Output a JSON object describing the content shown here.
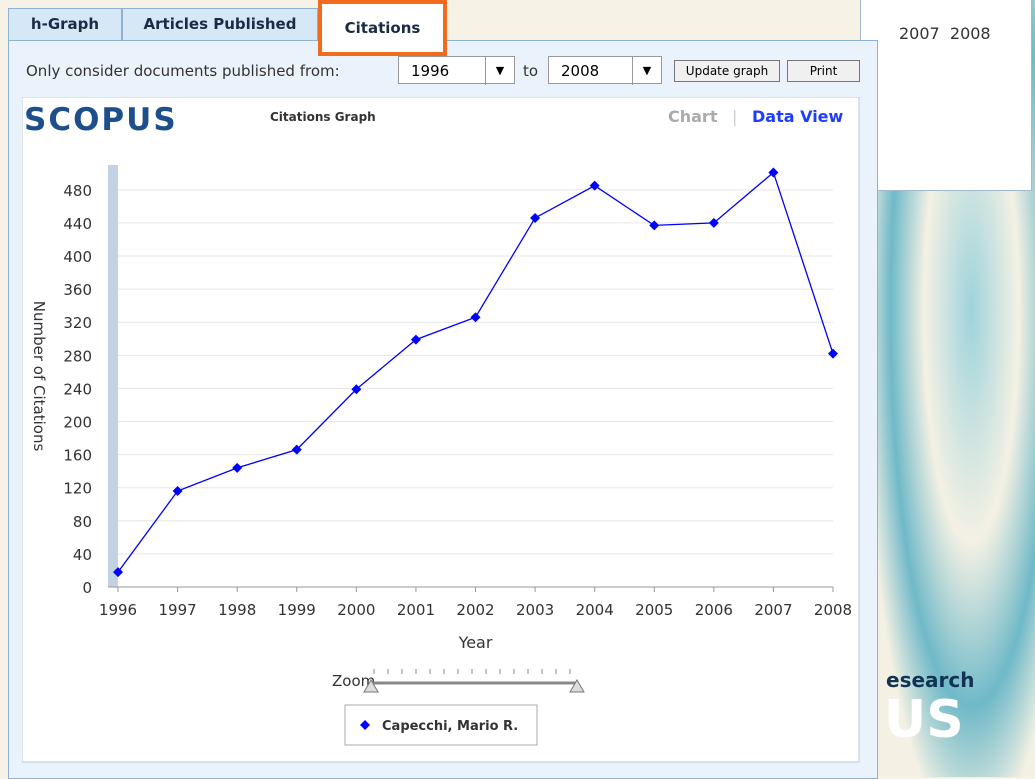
{
  "tabs": [
    "h-Graph",
    "Articles Published",
    "Citations"
  ],
  "filter": {
    "label": "Only consider documents published from:",
    "from": "1996",
    "to_label": "to",
    "to": "2008",
    "update": "Update graph",
    "print": "Print"
  },
  "brand": "SCOPUS",
  "graph_title": "Citations Graph",
  "views": [
    "Chart",
    "|",
    "Data View"
  ],
  "zoom": "Zoom",
  "background": {
    "years": "2007  2008",
    "research": "esearch",
    "logo": "US"
  },
  "chart_data": {
    "type": "line",
    "x_label": "Year",
    "y_label": "Number of Citations",
    "x": [
      1996,
      1997,
      1998,
      1999,
      2000,
      2001,
      2002,
      2003,
      2004,
      2005,
      2006,
      2007,
      2008
    ],
    "series": [
      {
        "name": "Capecchi, Mario R.",
        "color": "#0000ff",
        "values": [
          18,
          116,
          144,
          166,
          239,
          299,
          326,
          446,
          485,
          437,
          440,
          501,
          282
        ]
      }
    ],
    "xlim": [
      1996,
      2008
    ],
    "xticks": [
      1996,
      1997,
      1998,
      1999,
      2000,
      2001,
      2002,
      2003,
      2004,
      2005,
      2006,
      2007,
      2008
    ],
    "ylim": [
      0,
      510
    ],
    "yticks": [
      0,
      40,
      80,
      120,
      160,
      200,
      240,
      280,
      320,
      360,
      400,
      440,
      480
    ],
    "grid": true
  }
}
